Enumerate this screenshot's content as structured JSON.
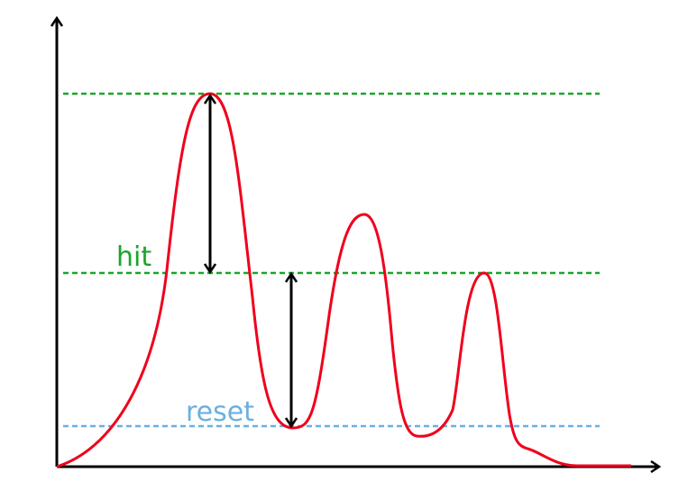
{
  "labels": {
    "hit": "hit",
    "reset": "reset"
  },
  "colors": {
    "signal": "#f0001c",
    "hit_line": "#1aa52a",
    "reset_line": "#6ab0e0",
    "axes": "#000000"
  }
}
